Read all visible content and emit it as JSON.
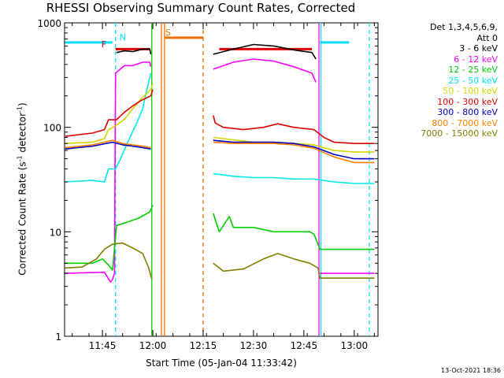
{
  "chart_data": {
    "type": "line",
    "title": "RHESSI Observing Summary Count Rates, Corrected",
    "xlabel": "Start Time (05-Jan-04 11:33:42)",
    "ylabel": "Corrected Count Rate (s",
    "ylabel_sup1": "-1",
    "ylabel_mid": " detector",
    "ylabel_sup2": "-1",
    "ylabel_end": ")",
    "ylog": true,
    "ylim": [
      1,
      1000
    ],
    "xlim": [
      11.562,
      13.118
    ],
    "xticks": [
      {
        "v": 11.75,
        "label": "11:45"
      },
      {
        "v": 12.0,
        "label": "12:00"
      },
      {
        "v": 12.25,
        "label": "12:15"
      },
      {
        "v": 12.5,
        "label": "12:30"
      },
      {
        "v": 12.75,
        "label": "12:45"
      },
      {
        "v": 13.0,
        "label": "13:00"
      }
    ],
    "yticks": [
      {
        "v": 1,
        "label": "1"
      },
      {
        "v": 10,
        "label": "10"
      },
      {
        "v": 100,
        "label": "100"
      },
      {
        "v": 1000,
        "label": "1000"
      }
    ],
    "legend_header": [
      "Det 1,3,4,5,6,9,",
      "Att 0"
    ],
    "legend_position": "right",
    "timestamp": "13-Oct-2021 18:36",
    "flags": [
      {
        "label": "N",
        "color": "#00e0ff",
        "x": 11.815
      },
      {
        "label": "F",
        "color": "#e00000",
        "x": 11.785
      },
      {
        "label": "S",
        "color": "#f07000",
        "x": 12.043
      }
    ],
    "series": [
      {
        "name": "3 - 6 keV",
        "color": "#000000",
        "segments": [
          [
            [
              11.82,
              520
            ],
            [
              11.86,
              540
            ],
            [
              11.9,
              530
            ],
            [
              11.95,
              560
            ],
            [
              11.985,
              560
            ],
            [
              11.99,
              500
            ]
          ],
          [
            [
              12.3,
              500
            ],
            [
              12.4,
              560
            ],
            [
              12.5,
              620
            ],
            [
              12.6,
              600
            ],
            [
              12.7,
              550
            ],
            [
              12.79,
              520
            ],
            [
              12.81,
              450
            ]
          ]
        ]
      },
      {
        "name": "6 - 12 keV",
        "color": "#ff00ff",
        "segments": [
          [
            [
              11.565,
              4.0
            ],
            [
              11.76,
              4.1
            ],
            [
              11.79,
              3.3
            ],
            [
              11.8,
              3.5
            ],
            [
              11.81,
              4.0
            ],
            [
              11.815,
              330
            ],
            [
              11.86,
              390
            ],
            [
              11.9,
              390
            ],
            [
              11.95,
              420
            ],
            [
              11.985,
              420
            ],
            [
              11.99,
              380
            ]
          ],
          [
            [
              12.3,
              360
            ],
            [
              12.4,
              420
            ],
            [
              12.5,
              450
            ],
            [
              12.6,
              430
            ],
            [
              12.7,
              380
            ],
            [
              12.79,
              330
            ],
            [
              12.81,
              270
            ]
          ],
          [
            [
              12.825,
              4.0
            ],
            [
              13.0,
              4.0
            ],
            [
              13.1,
              4.0
            ]
          ]
        ]
      },
      {
        "name": "12 - 25 keV",
        "color": "#00d000",
        "segments": [
          [
            [
              11.565,
              5.0
            ],
            [
              11.7,
              5.0
            ],
            [
              11.75,
              5.5
            ],
            [
              11.78,
              4.8
            ],
            [
              11.8,
              4.3
            ],
            [
              11.82,
              11.5
            ],
            [
              11.88,
              12.5
            ],
            [
              11.93,
              13.5
            ],
            [
              11.985,
              15.5
            ],
            [
              12.0,
              18
            ]
          ],
          [
            [
              12.3,
              15
            ],
            [
              12.33,
              10
            ],
            [
              12.38,
              14
            ],
            [
              12.4,
              11
            ],
            [
              12.5,
              11
            ],
            [
              12.6,
              10
            ],
            [
              12.7,
              10
            ],
            [
              12.78,
              10
            ],
            [
              12.8,
              9.5
            ],
            [
              12.83,
              6.8
            ],
            [
              13.0,
              6.8
            ],
            [
              13.1,
              6.8
            ]
          ]
        ]
      },
      {
        "name": "25 - 50 keV",
        "color": "#00e8e8",
        "segments": [
          [
            [
              11.565,
              30
            ],
            [
              11.7,
              31
            ],
            [
              11.76,
              30
            ],
            [
              11.78,
              40
            ],
            [
              11.815,
              40
            ],
            [
              11.84,
              50
            ],
            [
              11.88,
              75
            ],
            [
              11.92,
              110
            ],
            [
              11.95,
              150
            ],
            [
              11.97,
              230
            ],
            [
              11.99,
              330
            ]
          ],
          [
            [
              12.3,
              36
            ],
            [
              12.4,
              34
            ],
            [
              12.5,
              33
            ],
            [
              12.6,
              33
            ],
            [
              12.7,
              32
            ],
            [
              12.8,
              32
            ],
            [
              12.9,
              30
            ],
            [
              13.0,
              29
            ],
            [
              13.1,
              29
            ]
          ]
        ]
      },
      {
        "name": "50 - 100 keV",
        "color": "#d4d400",
        "segments": [
          [
            [
              11.565,
              70
            ],
            [
              11.7,
              72
            ],
            [
              11.76,
              78
            ],
            [
              11.78,
              95
            ],
            [
              11.82,
              105
            ],
            [
              11.86,
              120
            ],
            [
              11.9,
              150
            ],
            [
              11.94,
              185
            ],
            [
              11.99,
              230
            ],
            [
              12.0,
              265
            ]
          ],
          [
            [
              12.3,
              80
            ],
            [
              12.4,
              76
            ],
            [
              12.5,
              72
            ],
            [
              12.6,
              72
            ],
            [
              12.7,
              70
            ],
            [
              12.8,
              68
            ],
            [
              12.9,
              60
            ],
            [
              13.0,
              58
            ],
            [
              13.1,
              58
            ]
          ]
        ]
      },
      {
        "name": "100 - 300 keV",
        "color": "#e00000",
        "segments": [
          [
            [
              11.565,
              82
            ],
            [
              11.7,
              88
            ],
            [
              11.76,
              95
            ],
            [
              11.78,
              118
            ],
            [
              11.82,
              118
            ],
            [
              11.86,
              140
            ],
            [
              11.9,
              160
            ],
            [
              11.94,
              180
            ],
            [
              11.99,
              200
            ],
            [
              12.0,
              230
            ]
          ],
          [
            [
              12.3,
              130
            ],
            [
              12.31,
              110
            ],
            [
              12.35,
              100
            ],
            [
              12.45,
              95
            ],
            [
              12.55,
              100
            ],
            [
              12.62,
              108
            ],
            [
              12.7,
              100
            ],
            [
              12.8,
              95
            ],
            [
              12.85,
              80
            ],
            [
              12.9,
              72
            ],
            [
              13.0,
              70
            ],
            [
              13.1,
              70
            ]
          ]
        ]
      },
      {
        "name": "300 - 800 keV",
        "color": "#0000c0",
        "segments": [
          [
            [
              11.565,
              62
            ],
            [
              11.7,
              66
            ],
            [
              11.8,
              72
            ],
            [
              11.85,
              68
            ],
            [
              11.9,
              66
            ],
            [
              11.95,
              64
            ],
            [
              11.99,
              62
            ]
          ],
          [
            [
              12.3,
              75
            ],
            [
              12.4,
              72
            ],
            [
              12.5,
              72
            ],
            [
              12.6,
              72
            ],
            [
              12.7,
              70
            ],
            [
              12.8,
              65
            ],
            [
              12.9,
              55
            ],
            [
              13.0,
              50
            ],
            [
              13.1,
              50
            ]
          ]
        ]
      },
      {
        "name": "800 - 7000 keV",
        "color": "#ff8000",
        "segments": [
          [
            [
              11.565,
              64
            ],
            [
              11.7,
              68
            ],
            [
              11.8,
              75
            ],
            [
              11.85,
              70
            ],
            [
              11.9,
              68
            ],
            [
              11.95,
              66
            ],
            [
              11.99,
              64
            ]
          ],
          [
            [
              12.3,
              72
            ],
            [
              12.4,
              70
            ],
            [
              12.5,
              70
            ],
            [
              12.6,
              70
            ],
            [
              12.7,
              68
            ],
            [
              12.8,
              63
            ],
            [
              12.9,
              52
            ],
            [
              13.0,
              46
            ],
            [
              13.1,
              46
            ]
          ]
        ]
      },
      {
        "name": "7000 - 15000 keV",
        "color": "#808000",
        "segments": [
          [
            [
              11.565,
              4.5
            ],
            [
              11.65,
              4.6
            ],
            [
              11.72,
              5.5
            ],
            [
              11.76,
              6.8
            ],
            [
              11.8,
              7.6
            ],
            [
              11.85,
              7.8
            ],
            [
              11.9,
              7.0
            ],
            [
              11.95,
              6.2
            ],
            [
              11.98,
              4.5
            ],
            [
              11.995,
              3.5
            ]
          ],
          [
            [
              12.3,
              5
            ],
            [
              12.35,
              4.2
            ],
            [
              12.45,
              4.4
            ],
            [
              12.55,
              5.5
            ],
            [
              12.62,
              6.2
            ],
            [
              12.7,
              5.5
            ],
            [
              12.78,
              5
            ],
            [
              12.82,
              4.5
            ],
            [
              12.83,
              3.6
            ],
            [
              13.0,
              3.6
            ],
            [
              13.1,
              3.6
            ]
          ]
        ]
      }
    ],
    "bars": [
      {
        "color": "#00e0ff",
        "x0": 11.565,
        "x1": 11.8,
        "y": 650
      },
      {
        "color": "#00e0ff",
        "x0": 12.83,
        "x1": 12.975,
        "y": 650
      },
      {
        "color": "#e00000",
        "x0": 11.815,
        "x1": 11.985,
        "y": 560
      },
      {
        "color": "#e00000",
        "x0": 12.33,
        "x1": 12.79,
        "y": 560
      },
      {
        "color": "#f07000",
        "x0": 12.06,
        "x1": 12.25,
        "y": 720
      }
    ],
    "vlines": [
      {
        "x": 11.815,
        "color": "#00e0ff",
        "style": "dashed"
      },
      {
        "x": 12.835,
        "color": "#00e0ff",
        "style": "solid"
      },
      {
        "x": 13.075,
        "color": "#00e0ff",
        "style": "dashed"
      },
      {
        "x": 12.043,
        "color": "#f07000",
        "style": "solid"
      },
      {
        "x": 12.058,
        "color": "#f07000",
        "style": "solid"
      },
      {
        "x": 12.25,
        "color": "#f07000",
        "style": "dashed"
      },
      {
        "x": 11.995,
        "color": "#00d000",
        "style": "solid"
      },
      {
        "x": 12.825,
        "color": "#ff00ff",
        "style": "solid"
      }
    ]
  }
}
